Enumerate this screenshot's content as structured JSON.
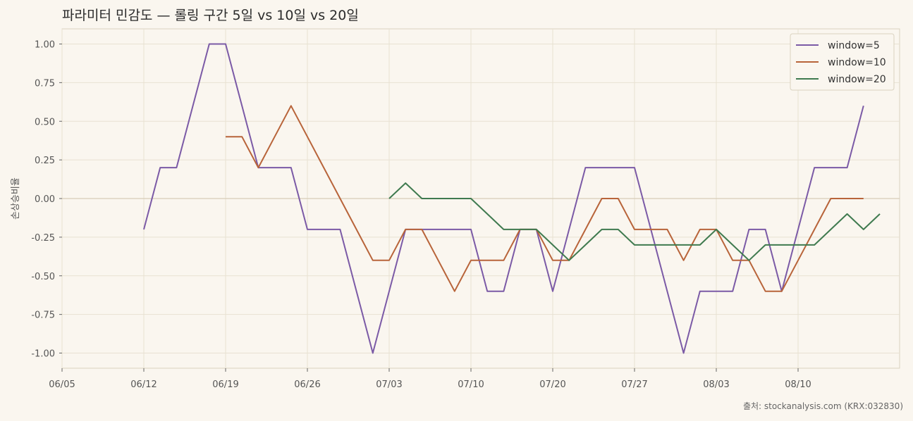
{
  "chart_data": {
    "type": "line",
    "title": "파라미터 민감도 — 롤링 구간 5일 vs 10일 vs 20일",
    "xlabel": "",
    "ylabel": "손상승비율",
    "x_ticks": [
      "06/05",
      "06/12",
      "06/19",
      "06/26",
      "07/03",
      "07/10",
      "07/20",
      "07/27",
      "08/03",
      "08/10"
    ],
    "yticks": [
      1.0,
      0.75,
      0.5,
      0.25,
      0.0,
      -0.25,
      -0.5,
      -0.75,
      -1.0
    ],
    "ytick_labels": [
      "1.00",
      "0.75",
      "0.50",
      "0.25",
      "0.00",
      "-0.25",
      "-0.50",
      "-0.75",
      "-1.00"
    ],
    "ylim": [
      -1.1,
      1.1
    ],
    "grid": true,
    "legend_position": "top-right",
    "source": "출처: stockanalysis.com (KRX:032830)",
    "series": [
      {
        "name": "window=5",
        "color": "#7b5aa6",
        "start_index": 5,
        "values": [
          -0.2,
          0.2,
          0.2,
          0.6,
          1.0,
          1.0,
          0.6,
          0.2,
          0.2,
          0.2,
          -0.2,
          -0.2,
          -0.2,
          -0.6,
          -1.0,
          -0.6,
          -0.2,
          -0.2,
          -0.2,
          -0.2,
          -0.2,
          -0.6,
          -0.6,
          -0.2,
          -0.2,
          -0.6,
          -0.2,
          0.2,
          0.2,
          0.2,
          0.2,
          -0.2,
          -0.6,
          -1.0,
          -0.6,
          -0.6,
          -0.6,
          -0.2,
          -0.2,
          -0.6,
          -0.2,
          0.2,
          0.2,
          0.2,
          0.6
        ]
      },
      {
        "name": "window=10",
        "color": "#b8643a",
        "start_index": 10,
        "values": [
          0.4,
          0.4,
          0.2,
          0.4,
          0.6,
          0.4,
          0.2,
          0.0,
          -0.2,
          -0.4,
          -0.4,
          -0.2,
          -0.2,
          -0.4,
          -0.6,
          -0.4,
          -0.4,
          -0.4,
          -0.2,
          -0.2,
          -0.4,
          -0.4,
          -0.2,
          0.0,
          0.0,
          -0.2,
          -0.2,
          -0.2,
          -0.4,
          -0.2,
          -0.2,
          -0.4,
          -0.4,
          -0.6,
          -0.6,
          -0.4,
          -0.2,
          0.0,
          0.0,
          0.0
        ]
      },
      {
        "name": "window=20",
        "color": "#3f7a4f",
        "start_index": 20,
        "values": [
          0.0,
          0.1,
          0.0,
          0.0,
          0.0,
          0.0,
          -0.1,
          -0.2,
          -0.2,
          -0.2,
          -0.3,
          -0.4,
          -0.3,
          -0.2,
          -0.2,
          -0.3,
          -0.3,
          -0.3,
          -0.3,
          -0.3,
          -0.2,
          -0.3,
          -0.4,
          -0.3,
          -0.3,
          -0.3,
          -0.3,
          -0.2,
          -0.1,
          -0.2,
          -0.1
        ]
      }
    ]
  }
}
